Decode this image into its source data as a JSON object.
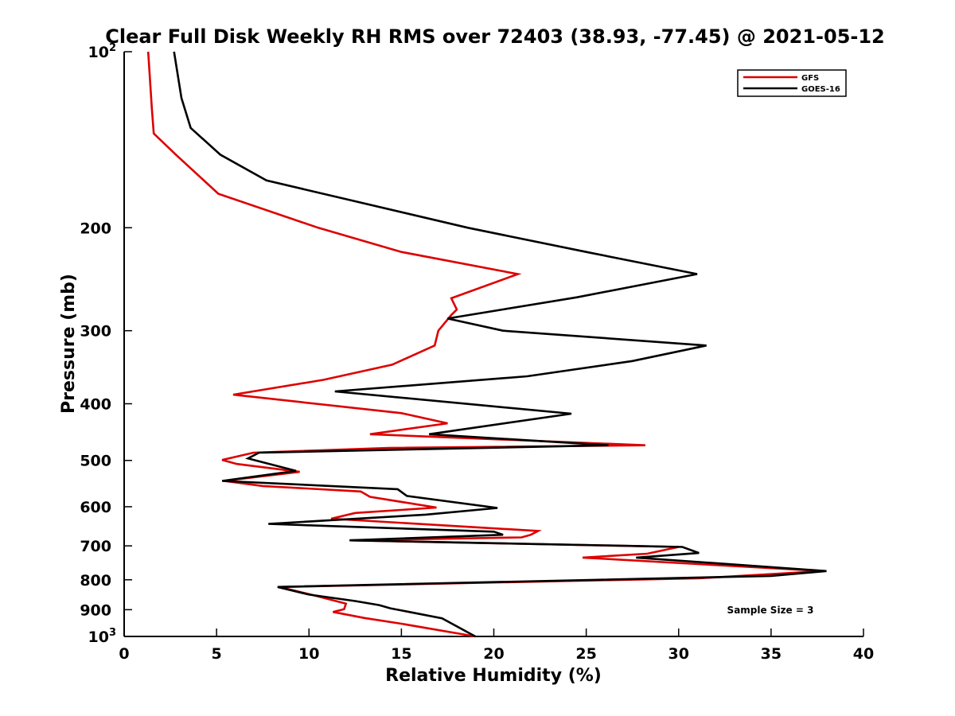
{
  "chart_data": {
    "type": "line",
    "title": "Clear Full Disk Weekly RH RMS over 72403 (38.93, -77.45) @ 2021-05-12",
    "xlabel": "Relative Humidity (%)",
    "ylabel": "Pressure (mb)",
    "xlim": [
      0,
      40
    ],
    "ylim": [
      100,
      1000
    ],
    "y_scale": "log",
    "y_reversed": true,
    "grid": false,
    "legend_position": "top-right",
    "x_ticks": [
      "0",
      "5",
      "10",
      "15",
      "20",
      "25",
      "30",
      "35",
      "40"
    ],
    "y_ticks": [
      {
        "value": 100,
        "base": "10",
        "exp": "2"
      },
      {
        "value": 200,
        "label": "200"
      },
      {
        "value": 300,
        "label": "300"
      },
      {
        "value": 400,
        "label": "400"
      },
      {
        "value": 500,
        "label": "500"
      },
      {
        "value": 600,
        "label": "600"
      },
      {
        "value": 700,
        "label": "700"
      },
      {
        "value": 800,
        "label": "800"
      },
      {
        "value": 900,
        "label": "900"
      },
      {
        "value": 1000,
        "base": "10",
        "exp": "3"
      }
    ],
    "annotation": "Sample Size = 3",
    "series": [
      {
        "name": "GFS",
        "color": "#dd0000",
        "points": [
          [
            1.3,
            100
          ],
          [
            1.5,
            125
          ],
          [
            1.6,
            138
          ],
          [
            2.8,
            150
          ],
          [
            5.1,
            175
          ],
          [
            10.5,
            200
          ],
          [
            15.0,
            220
          ],
          [
            21.3,
            240
          ],
          [
            17.7,
            264
          ],
          [
            18.0,
            276
          ],
          [
            17.7,
            282
          ],
          [
            17.0,
            300
          ],
          [
            16.8,
            318
          ],
          [
            14.5,
            343
          ],
          [
            10.8,
            364
          ],
          [
            5.9,
            386
          ],
          [
            15.0,
            415
          ],
          [
            17.5,
            432
          ],
          [
            13.3,
            451
          ],
          [
            28.2,
            471
          ],
          [
            14.3,
            476
          ],
          [
            7.0,
            485
          ],
          [
            5.3,
            499
          ],
          [
            6.1,
            507
          ],
          [
            9.5,
            523
          ],
          [
            5.4,
            542
          ],
          [
            7.5,
            553
          ],
          [
            12.8,
            565
          ],
          [
            13.3,
            577
          ],
          [
            16.9,
            602
          ],
          [
            12.5,
            615
          ],
          [
            11.2,
            629
          ],
          [
            22.4,
            660
          ],
          [
            22.0,
            670
          ],
          [
            21.5,
            677
          ],
          [
            12.2,
            685
          ],
          [
            30.0,
            703
          ],
          [
            28.3,
            722
          ],
          [
            24.8,
            733
          ],
          [
            37.8,
            773
          ],
          [
            31.2,
            795
          ],
          [
            8.4,
            823
          ],
          [
            10.1,
            848
          ],
          [
            12.0,
            879
          ],
          [
            11.9,
            898
          ],
          [
            11.3,
            908
          ],
          [
            13.0,
            930
          ],
          [
            15.0,
            951
          ],
          [
            19.0,
            1000
          ]
        ]
      },
      {
        "name": "GOES-16",
        "color": "#000000",
        "points": [
          [
            2.7,
            100
          ],
          [
            3.1,
            120
          ],
          [
            3.6,
            135
          ],
          [
            5.2,
            150
          ],
          [
            7.7,
            166
          ],
          [
            18.6,
            200
          ],
          [
            25.0,
            220
          ],
          [
            31.0,
            240
          ],
          [
            24.5,
            263
          ],
          [
            17.5,
            286
          ],
          [
            20.5,
            300
          ],
          [
            31.5,
            318
          ],
          [
            27.5,
            338
          ],
          [
            21.8,
            359
          ],
          [
            11.4,
            381
          ],
          [
            24.2,
            416
          ],
          [
            16.5,
            451
          ],
          [
            26.2,
            471
          ],
          [
            7.3,
            485
          ],
          [
            6.7,
            496
          ],
          [
            9.3,
            521
          ],
          [
            5.3,
            542
          ],
          [
            14.8,
            560
          ],
          [
            15.3,
            575
          ],
          [
            20.2,
            603
          ],
          [
            16.3,
            619
          ],
          [
            7.8,
            642
          ],
          [
            20.0,
            662
          ],
          [
            20.5,
            670
          ],
          [
            12.2,
            685
          ],
          [
            30.2,
            703
          ],
          [
            31.1,
            720
          ],
          [
            27.7,
            733
          ],
          [
            38.0,
            773
          ],
          [
            35.0,
            788
          ],
          [
            8.3,
            823
          ],
          [
            10.0,
            848
          ],
          [
            12.5,
            870
          ],
          [
            13.8,
            884
          ],
          [
            14.4,
            895
          ],
          [
            17.2,
            931
          ],
          [
            19.0,
            1000
          ]
        ]
      }
    ]
  }
}
